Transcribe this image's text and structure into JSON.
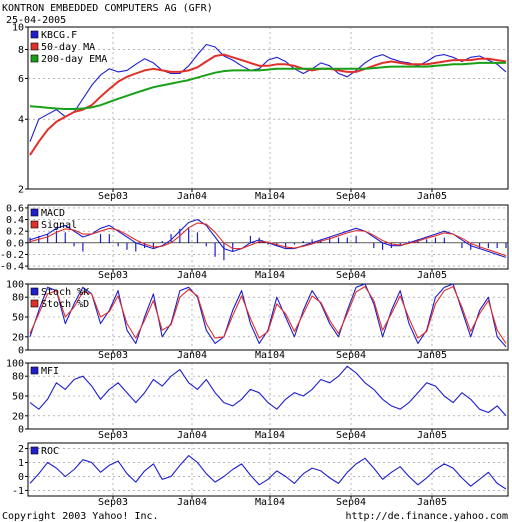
{
  "header": {
    "title": "KONTRON EMBEDDED COMPUTERS AG (GFR)",
    "date": "25-04-2005"
  },
  "footer": {
    "copyright": "Copyright 2003 Yahoo! Inc.",
    "url": "http://de.finance.yahoo.com"
  },
  "colors": {
    "price": "#1f1fd0",
    "ma50": "#e0302a",
    "ema200": "#1aa018",
    "macd": "#1f1fd0",
    "signal": "#e0302a",
    "grid": "#888888"
  },
  "chart_data": [
    {
      "type": "line",
      "panel": "price",
      "x_ticks": [
        "Sep03",
        "Jan04",
        "Mai04",
        "Sep04",
        "Jan05"
      ],
      "y_ticks": [
        "2",
        "4",
        "6",
        "8",
        "10"
      ],
      "ylim": [
        2,
        10
      ],
      "y_scale": "log",
      "legend_position": "top-left",
      "series": [
        {
          "name": "KBCG.F",
          "values": [
            3.2,
            4.0,
            4.2,
            4.4,
            4.1,
            4.3,
            4.9,
            5.6,
            6.2,
            6.6,
            6.4,
            6.5,
            6.9,
            7.3,
            7.0,
            6.5,
            6.3,
            6.3,
            6.8,
            7.6,
            8.4,
            8.2,
            7.5,
            7.2,
            6.8,
            6.5,
            6.6,
            7.2,
            7.4,
            7.1,
            6.6,
            6.3,
            6.6,
            7.0,
            6.8,
            6.3,
            6.1,
            6.5,
            7.0,
            7.4,
            7.6,
            7.3,
            7.1,
            7.0,
            6.8,
            7.1,
            7.5,
            7.6,
            7.4,
            7.1,
            7.4,
            7.5,
            7.2,
            6.9,
            6.4
          ]
        },
        {
          "name": "50-day MA",
          "values": [
            2.8,
            3.2,
            3.6,
            3.9,
            4.1,
            4.3,
            4.4,
            4.6,
            5.0,
            5.4,
            5.8,
            6.1,
            6.3,
            6.5,
            6.6,
            6.5,
            6.4,
            6.4,
            6.5,
            6.7,
            7.1,
            7.5,
            7.6,
            7.4,
            7.2,
            7.0,
            6.8,
            6.8,
            6.9,
            6.9,
            6.8,
            6.6,
            6.5,
            6.6,
            6.6,
            6.5,
            6.4,
            6.4,
            6.6,
            6.8,
            7.0,
            7.1,
            7.0,
            6.9,
            6.9,
            6.9,
            7.0,
            7.1,
            7.2,
            7.2,
            7.2,
            7.3,
            7.3,
            7.2,
            7.1
          ]
        },
        {
          "name": "200-day EMA",
          "values": [
            4.55,
            4.52,
            4.48,
            4.45,
            4.43,
            4.43,
            4.45,
            4.5,
            4.6,
            4.75,
            4.9,
            5.05,
            5.2,
            5.35,
            5.5,
            5.6,
            5.7,
            5.8,
            5.9,
            6.05,
            6.2,
            6.35,
            6.45,
            6.5,
            6.5,
            6.5,
            6.5,
            6.55,
            6.6,
            6.6,
            6.6,
            6.6,
            6.6,
            6.6,
            6.6,
            6.6,
            6.6,
            6.6,
            6.6,
            6.65,
            6.7,
            6.75,
            6.75,
            6.75,
            6.75,
            6.75,
            6.8,
            6.85,
            6.9,
            6.9,
            6.95,
            7.0,
            7.0,
            7.0,
            7.0
          ]
        }
      ]
    },
    {
      "type": "line",
      "panel": "macd",
      "x_ticks": [
        "Sep03",
        "Jan04",
        "Mai04",
        "Sep04",
        "Jan05"
      ],
      "y_ticks": [
        "0.6",
        "0.4",
        "0.2",
        "0.0",
        "-0.2",
        "-0.4"
      ],
      "ylim": [
        -0.45,
        0.65
      ],
      "series": [
        {
          "name": "MACD",
          "values": [
            0.05,
            0.1,
            0.15,
            0.25,
            0.3,
            0.2,
            0.1,
            0.15,
            0.25,
            0.3,
            0.2,
            0.1,
            0.0,
            -0.05,
            -0.1,
            -0.05,
            0.05,
            0.2,
            0.35,
            0.4,
            0.3,
            0.1,
            -0.1,
            -0.15,
            -0.1,
            0.0,
            0.05,
            0.0,
            -0.05,
            -0.1,
            -0.1,
            -0.05,
            0.0,
            0.05,
            0.1,
            0.15,
            0.2,
            0.25,
            0.2,
            0.1,
            0.0,
            -0.05,
            -0.05,
            0.0,
            0.05,
            0.1,
            0.15,
            0.2,
            0.15,
            0.05,
            -0.05,
            -0.1,
            -0.15,
            -0.2,
            -0.25
          ]
        },
        {
          "name": "Signal",
          "values": [
            0.02,
            0.06,
            0.1,
            0.18,
            0.24,
            0.22,
            0.15,
            0.15,
            0.2,
            0.25,
            0.22,
            0.14,
            0.05,
            -0.02,
            -0.07,
            -0.06,
            0.0,
            0.12,
            0.26,
            0.34,
            0.32,
            0.18,
            0.0,
            -0.1,
            -0.1,
            -0.04,
            0.02,
            0.01,
            -0.03,
            -0.07,
            -0.09,
            -0.06,
            -0.02,
            0.03,
            0.07,
            0.12,
            0.17,
            0.21,
            0.2,
            0.13,
            0.04,
            -0.02,
            -0.04,
            -0.01,
            0.03,
            0.08,
            0.12,
            0.17,
            0.15,
            0.08,
            -0.01,
            -0.07,
            -0.12,
            -0.17,
            -0.22
          ]
        }
      ]
    },
    {
      "type": "line",
      "panel": "stoch",
      "x_ticks": [
        "Sep03",
        "Jan04",
        "Mai04",
        "Sep04",
        "Jan05"
      ],
      "y_ticks": [
        "100",
        "80",
        "50",
        "20",
        "0"
      ],
      "ylim": [
        0,
        100
      ],
      "series": [
        {
          "name": "Stoch %K",
          "values": [
            20,
            60,
            95,
            90,
            40,
            70,
            95,
            85,
            40,
            60,
            90,
            30,
            10,
            50,
            85,
            20,
            40,
            90,
            95,
            80,
            30,
            10,
            20,
            60,
            90,
            40,
            10,
            30,
            80,
            50,
            20,
            60,
            90,
            70,
            40,
            20,
            60,
            95,
            100,
            70,
            20,
            60,
            90,
            40,
            10,
            30,
            80,
            95,
            100,
            60,
            20,
            60,
            80,
            20,
            5
          ]
        },
        {
          "name": "Stoch %D",
          "values": [
            25,
            55,
            85,
            90,
            50,
            65,
            88,
            85,
            50,
            58,
            82,
            40,
            18,
            45,
            75,
            30,
            38,
            80,
            92,
            82,
            40,
            18,
            20,
            52,
            82,
            48,
            18,
            28,
            70,
            55,
            28,
            55,
            82,
            72,
            45,
            25,
            55,
            88,
            96,
            75,
            30,
            55,
            82,
            48,
            18,
            28,
            70,
            90,
            96,
            65,
            28,
            55,
            75,
            30,
            10
          ]
        }
      ]
    },
    {
      "type": "line",
      "panel": "mfi",
      "x_ticks": [
        "Sep03",
        "Jan04",
        "Mai04",
        "Sep04",
        "Jan05"
      ],
      "y_ticks": [
        "100",
        "80",
        "50",
        "20",
        "0"
      ],
      "ylim": [
        0,
        100
      ],
      "series": [
        {
          "name": "MFI",
          "values": [
            40,
            30,
            45,
            70,
            60,
            75,
            80,
            65,
            45,
            60,
            70,
            55,
            40,
            55,
            75,
            65,
            80,
            90,
            70,
            60,
            75,
            55,
            40,
            35,
            45,
            60,
            55,
            40,
            30,
            45,
            55,
            50,
            60,
            75,
            70,
            80,
            95,
            85,
            70,
            60,
            45,
            35,
            30,
            40,
            55,
            70,
            65,
            50,
            40,
            55,
            45,
            30,
            25,
            35,
            20
          ]
        }
      ]
    },
    {
      "type": "line",
      "panel": "roc",
      "x_ticks": [
        "Sep03",
        "Jan04",
        "Mai04",
        "Sep04",
        "Jan05"
      ],
      "y_ticks": [
        "2",
        "1",
        "0",
        "-1"
      ],
      "ylim": [
        -1.4,
        2.4
      ],
      "series": [
        {
          "name": "ROC",
          "values": [
            -0.5,
            0.2,
            1.0,
            0.6,
            0.0,
            0.5,
            1.2,
            1.0,
            0.3,
            0.8,
            1.1,
            0.2,
            -0.4,
            0.4,
            0.9,
            -0.2,
            0.0,
            0.8,
            1.5,
            1.0,
            0.2,
            -0.4,
            0.0,
            0.5,
            0.9,
            0.1,
            -0.6,
            -0.2,
            0.4,
            0.0,
            -0.5,
            0.2,
            0.6,
            0.4,
            -0.1,
            -0.5,
            0.3,
            0.9,
            1.3,
            0.6,
            -0.2,
            0.3,
            0.7,
            0.0,
            -0.6,
            -0.1,
            0.5,
            0.9,
            0.6,
            -0.1,
            -0.7,
            -0.2,
            0.3,
            -0.5,
            -0.9
          ]
        }
      ]
    }
  ]
}
